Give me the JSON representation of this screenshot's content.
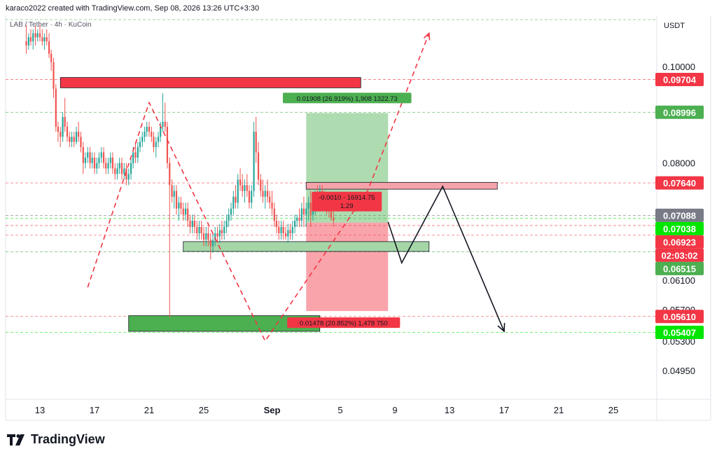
{
  "header": {
    "attribution": "karaco2022 created with TradingView.com, Sep 08, 2026 13:26 UTC+3:30",
    "symbol": "LAB / Tether · 4h · KuCoin"
  },
  "brand": {
    "name": "TradingView",
    "logo_icon": "tradingview-logo-icon"
  },
  "chart_data": {
    "type": "candlestick",
    "currency_label": "USDT",
    "x_axis": {
      "ticks": [
        {
          "label": "13",
          "day": 13
        },
        {
          "label": "17",
          "day": 17
        },
        {
          "label": "21",
          "day": 21
        },
        {
          "label": "25",
          "day": 25
        },
        {
          "label": "Sep",
          "day": 30
        },
        {
          "label": "5",
          "day": 35
        },
        {
          "label": "9",
          "day": 39
        },
        {
          "label": "13",
          "day": 43
        },
        {
          "label": "17",
          "day": 47
        },
        {
          "label": "21",
          "day": 51
        },
        {
          "label": "25",
          "day": 55
        }
      ]
    },
    "y_axis": {
      "scale": "log",
      "ticks": [
        "0.10000",
        "0.08000",
        "0.06100",
        "0.05700",
        "0.05300",
        "0.04950"
      ]
    },
    "price_badges": [
      {
        "label": "0.09704",
        "value": 0.09704,
        "color": "#f23645"
      },
      {
        "label": "0.08996",
        "value": 0.08996,
        "color": "#4caf50"
      },
      {
        "label": "0.07640",
        "value": 0.0764,
        "color": "#f23645"
      },
      {
        "label": "0.07088",
        "value": 0.07088,
        "color": "#787b86"
      },
      {
        "label": "0.07038",
        "value": 0.07038,
        "color": "#00e600"
      },
      {
        "label": "0.06923",
        "value": 0.06923,
        "color": "#f23645"
      },
      {
        "label": "02:03:02",
        "value": 0.0677,
        "color": "#f23645"
      },
      {
        "label": "0.06515",
        "value": 0.06515,
        "color": "#4caf50"
      },
      {
        "label": "0.05610",
        "value": 0.0561,
        "color": "#f23645"
      },
      {
        "label": "0.05407",
        "value": 0.05407,
        "color": "#00e600"
      }
    ],
    "zones": [
      {
        "name": "supply-zone",
        "color": "#f23645",
        "x_from": 14.5,
        "x_to": 36.5,
        "y_from": 0.0952,
        "y_to": 0.0975
      },
      {
        "name": "resistance-zone",
        "color": "#f4a3aa",
        "x_from": 32.5,
        "x_to": 46.5,
        "y_from": 0.0753,
        "y_to": 0.0765
      },
      {
        "name": "demand-zone",
        "color": "#a5d6a7",
        "x_from": 23.5,
        "x_to": 41.5,
        "y_from": 0.0652,
        "y_to": 0.0667
      },
      {
        "name": "support-zone",
        "color": "#4caf50",
        "x_from": 19.5,
        "x_to": 33.5,
        "y_from": 0.0542,
        "y_to": 0.0562
      }
    ],
    "position": {
      "entry": 0.0697,
      "target": 0.0898,
      "stop": 0.0568,
      "x_from": 32.5,
      "x_to": 38.5,
      "target_label": "0.01908 (26.919%) 1,908 1322.73",
      "stop_label": "0.01478 (20.852%) 1,478 750",
      "mid_label_1": "-0.0010 - 16914.75",
      "mid_label_2": "1.29"
    },
    "candles": [
      [
        12,
        0.106,
        0.11,
        0.103,
        0.105
      ],
      [
        12.17,
        0.105,
        0.108,
        0.104,
        0.107
      ],
      [
        12.33,
        0.107,
        0.109,
        0.105,
        0.106
      ],
      [
        12.5,
        0.106,
        0.109,
        0.104,
        0.108
      ],
      [
        12.67,
        0.108,
        0.11,
        0.105,
        0.107
      ],
      [
        12.83,
        0.107,
        0.109,
        0.106,
        0.108
      ],
      [
        13,
        0.108,
        0.11,
        0.106,
        0.107
      ],
      [
        13.17,
        0.107,
        0.109,
        0.105,
        0.106
      ],
      [
        13.33,
        0.106,
        0.108,
        0.104,
        0.107
      ],
      [
        13.5,
        0.107,
        0.109,
        0.105,
        0.106
      ],
      [
        13.67,
        0.106,
        0.108,
        0.102,
        0.103
      ],
      [
        13.83,
        0.103,
        0.104,
        0.099,
        0.101
      ],
      [
        14,
        0.101,
        0.102,
        0.093,
        0.095
      ],
      [
        14.17,
        0.095,
        0.096,
        0.086,
        0.087
      ],
      [
        14.33,
        0.087,
        0.088,
        0.084,
        0.086
      ],
      [
        14.5,
        0.086,
        0.087,
        0.083,
        0.085
      ],
      [
        14.67,
        0.085,
        0.09,
        0.084,
        0.089
      ],
      [
        14.83,
        0.089,
        0.093,
        0.086,
        0.087
      ],
      [
        15,
        0.087,
        0.088,
        0.084,
        0.085
      ],
      [
        15.17,
        0.085,
        0.086,
        0.083,
        0.084
      ],
      [
        15.33,
        0.084,
        0.086,
        0.083,
        0.085
      ],
      [
        15.5,
        0.085,
        0.086,
        0.083,
        0.084
      ],
      [
        15.67,
        0.084,
        0.087,
        0.0835,
        0.086
      ],
      [
        15.83,
        0.086,
        0.088,
        0.084,
        0.085
      ],
      [
        16,
        0.085,
        0.086,
        0.082,
        0.083
      ],
      [
        16.17,
        0.083,
        0.084,
        0.078,
        0.08
      ],
      [
        16.33,
        0.08,
        0.082,
        0.079,
        0.081
      ],
      [
        16.5,
        0.081,
        0.083,
        0.08,
        0.082
      ],
      [
        16.67,
        0.082,
        0.083,
        0.079,
        0.08
      ],
      [
        16.83,
        0.08,
        0.082,
        0.079,
        0.081
      ],
      [
        17,
        0.081,
        0.082,
        0.078,
        0.079
      ],
      [
        17.17,
        0.079,
        0.081,
        0.078,
        0.08
      ],
      [
        17.33,
        0.08,
        0.082,
        0.079,
        0.081
      ],
      [
        17.5,
        0.081,
        0.083,
        0.08,
        0.082
      ],
      [
        17.67,
        0.082,
        0.083,
        0.079,
        0.08
      ],
      [
        17.83,
        0.08,
        0.081,
        0.078,
        0.079
      ],
      [
        18,
        0.079,
        0.081,
        0.078,
        0.08
      ],
      [
        18.17,
        0.08,
        0.082,
        0.079,
        0.081
      ],
      [
        18.33,
        0.081,
        0.082,
        0.078,
        0.079
      ],
      [
        18.5,
        0.079,
        0.08,
        0.077,
        0.078
      ],
      [
        18.67,
        0.078,
        0.08,
        0.077,
        0.079
      ],
      [
        18.83,
        0.079,
        0.081,
        0.078,
        0.08
      ],
      [
        19,
        0.08,
        0.081,
        0.077,
        0.078
      ],
      [
        19.17,
        0.078,
        0.08,
        0.077,
        0.079
      ],
      [
        19.33,
        0.079,
        0.08,
        0.076,
        0.077
      ],
      [
        19.5,
        0.077,
        0.079,
        0.076,
        0.078
      ],
      [
        19.67,
        0.078,
        0.081,
        0.077,
        0.08
      ],
      [
        19.83,
        0.08,
        0.083,
        0.079,
        0.082
      ],
      [
        20,
        0.082,
        0.084,
        0.08,
        0.081
      ],
      [
        20.17,
        0.081,
        0.084,
        0.08,
        0.083
      ],
      [
        20.33,
        0.083,
        0.085,
        0.082,
        0.084
      ],
      [
        20.5,
        0.084,
        0.086,
        0.083,
        0.085
      ],
      [
        20.67,
        0.085,
        0.087,
        0.084,
        0.086
      ],
      [
        20.83,
        0.086,
        0.088,
        0.085,
        0.087
      ],
      [
        21,
        0.087,
        0.088,
        0.085,
        0.086
      ],
      [
        21.17,
        0.086,
        0.087,
        0.084,
        0.085
      ],
      [
        21.33,
        0.085,
        0.086,
        0.082,
        0.083
      ],
      [
        21.5,
        0.083,
        0.085,
        0.081,
        0.084
      ],
      [
        21.67,
        0.084,
        0.086,
        0.083,
        0.085
      ],
      [
        21.83,
        0.085,
        0.088,
        0.084,
        0.087
      ],
      [
        22,
        0.087,
        0.094,
        0.086,
        0.088
      ],
      [
        22.17,
        0.088,
        0.092,
        0.086,
        0.087
      ],
      [
        22.33,
        0.087,
        0.088,
        0.079,
        0.08
      ],
      [
        22.5,
        0.08,
        0.081,
        0.056,
        0.076
      ],
      [
        22.67,
        0.076,
        0.077,
        0.073,
        0.074
      ],
      [
        22.83,
        0.074,
        0.076,
        0.072,
        0.075
      ],
      [
        23,
        0.075,
        0.076,
        0.071,
        0.072
      ],
      [
        23.17,
        0.072,
        0.074,
        0.07,
        0.073
      ],
      [
        23.33,
        0.073,
        0.074,
        0.071,
        0.072
      ],
      [
        23.5,
        0.072,
        0.073,
        0.07,
        0.071
      ],
      [
        23.67,
        0.071,
        0.073,
        0.07,
        0.072
      ],
      [
        23.83,
        0.072,
        0.073,
        0.069,
        0.07
      ],
      [
        24,
        0.07,
        0.071,
        0.068,
        0.069
      ],
      [
        24.17,
        0.069,
        0.071,
        0.068,
        0.07
      ],
      [
        24.33,
        0.07,
        0.071,
        0.068,
        0.069
      ],
      [
        24.5,
        0.069,
        0.07,
        0.067,
        0.068
      ],
      [
        24.67,
        0.068,
        0.07,
        0.067,
        0.069
      ],
      [
        24.83,
        0.069,
        0.07,
        0.067,
        0.068
      ],
      [
        25,
        0.068,
        0.069,
        0.066,
        0.067
      ],
      [
        25.17,
        0.067,
        0.069,
        0.066,
        0.068
      ],
      [
        25.33,
        0.068,
        0.069,
        0.066,
        0.067
      ],
      [
        25.5,
        0.067,
        0.068,
        0.064,
        0.066
      ],
      [
        25.67,
        0.066,
        0.068,
        0.065,
        0.067
      ],
      [
        25.83,
        0.067,
        0.069,
        0.066,
        0.068
      ],
      [
        26,
        0.068,
        0.069,
        0.0665,
        0.0675
      ],
      [
        26.17,
        0.0675,
        0.0695,
        0.0665,
        0.0685
      ],
      [
        26.33,
        0.0685,
        0.07,
        0.067,
        0.068
      ],
      [
        26.5,
        0.068,
        0.07,
        0.067,
        0.069
      ],
      [
        26.67,
        0.069,
        0.071,
        0.068,
        0.07
      ],
      [
        26.83,
        0.07,
        0.072,
        0.069,
        0.071
      ],
      [
        27,
        0.071,
        0.073,
        0.07,
        0.072
      ],
      [
        27.17,
        0.072,
        0.075,
        0.071,
        0.074
      ],
      [
        27.33,
        0.074,
        0.076,
        0.072,
        0.073
      ],
      [
        27.5,
        0.073,
        0.078,
        0.072,
        0.077
      ],
      [
        27.67,
        0.077,
        0.079,
        0.075,
        0.076
      ],
      [
        27.83,
        0.076,
        0.078,
        0.074,
        0.075
      ],
      [
        28,
        0.075,
        0.077,
        0.073,
        0.076
      ],
      [
        28.17,
        0.076,
        0.078,
        0.074,
        0.075
      ],
      [
        28.33,
        0.075,
        0.076,
        0.072,
        0.073
      ],
      [
        28.5,
        0.073,
        0.076,
        0.072,
        0.075
      ],
      [
        28.67,
        0.075,
        0.088,
        0.074,
        0.086
      ],
      [
        28.83,
        0.086,
        0.089,
        0.08,
        0.082
      ],
      [
        29,
        0.082,
        0.084,
        0.076,
        0.077
      ],
      [
        29.17,
        0.077,
        0.078,
        0.074,
        0.075
      ],
      [
        29.33,
        0.075,
        0.077,
        0.073,
        0.074
      ],
      [
        29.5,
        0.074,
        0.076,
        0.072,
        0.075
      ],
      [
        29.67,
        0.075,
        0.077,
        0.073,
        0.074
      ],
      [
        29.83,
        0.074,
        0.075,
        0.072,
        0.073
      ],
      [
        30,
        0.073,
        0.075,
        0.071,
        0.072
      ],
      [
        30.17,
        0.072,
        0.073,
        0.069,
        0.07
      ],
      [
        30.33,
        0.07,
        0.071,
        0.068,
        0.069
      ],
      [
        30.5,
        0.069,
        0.07,
        0.067,
        0.068
      ],
      [
        30.67,
        0.068,
        0.07,
        0.067,
        0.069
      ],
      [
        30.83,
        0.069,
        0.07,
        0.067,
        0.068
      ],
      [
        31,
        0.068,
        0.069,
        0.067,
        0.0675
      ],
      [
        31.17,
        0.0675,
        0.0695,
        0.0665,
        0.0685
      ],
      [
        31.33,
        0.0685,
        0.0695,
        0.067,
        0.068
      ],
      [
        31.5,
        0.068,
        0.07,
        0.067,
        0.069
      ],
      [
        31.67,
        0.069,
        0.071,
        0.068,
        0.07
      ],
      [
        31.83,
        0.07,
        0.071,
        0.069,
        0.0705
      ],
      [
        32,
        0.0705,
        0.072,
        0.069,
        0.07
      ],
      [
        32.17,
        0.07,
        0.073,
        0.069,
        0.072
      ],
      [
        32.33,
        0.072,
        0.074,
        0.069,
        0.071
      ],
      [
        32.5,
        0.071,
        0.073,
        0.069,
        0.072
      ],
      [
        32.67,
        0.072,
        0.074,
        0.07,
        0.073
      ],
      [
        32.83,
        0.073,
        0.075,
        0.069,
        0.071
      ],
      [
        33,
        0.071,
        0.074,
        0.07,
        0.073
      ],
      [
        33.17,
        0.073,
        0.075,
        0.071,
        0.074
      ],
      [
        33.33,
        0.074,
        0.076,
        0.072,
        0.073
      ],
      [
        33.5,
        0.073,
        0.076,
        0.072,
        0.075
      ],
      [
        33.67,
        0.075,
        0.076,
        0.073,
        0.074
      ],
      [
        33.83,
        0.074,
        0.075,
        0.072,
        0.073
      ],
      [
        34,
        0.073,
        0.074,
        0.071,
        0.072
      ],
      [
        34.17,
        0.072,
        0.073,
        0.0705,
        0.0715
      ],
      [
        34.33,
        0.0715,
        0.0725,
        0.07,
        0.0705
      ],
      [
        34.5,
        0.0705,
        0.0715,
        0.069,
        0.07
      ]
    ],
    "projection_dashed": [
      [
        16.5,
        0.06
      ],
      [
        21,
        0.092
      ],
      [
        29.5,
        0.053
      ],
      [
        37,
        0.075
      ],
      [
        41.5,
        0.108
      ]
    ],
    "projection_solid": [
      [
        38.5,
        0.0698
      ],
      [
        39.5,
        0.0635
      ],
      [
        42.5,
        0.0758
      ],
      [
        47,
        0.0542
      ]
    ]
  }
}
